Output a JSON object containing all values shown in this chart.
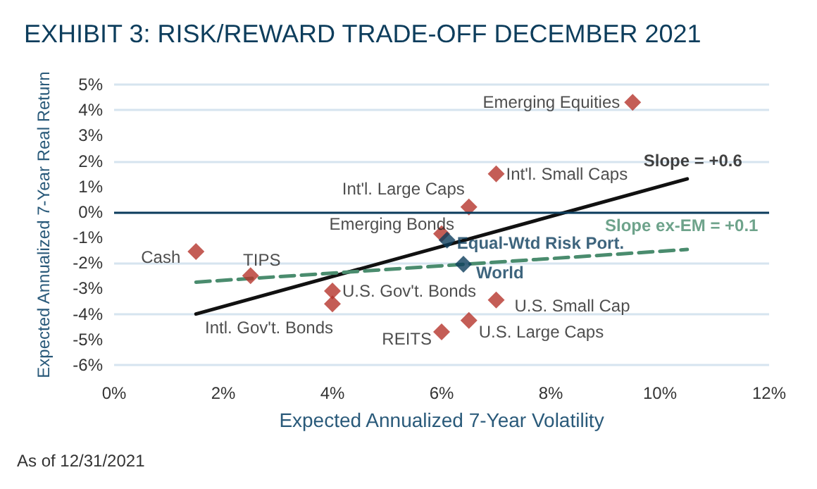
{
  "chart_data": {
    "type": "scatter",
    "title": "EXHIBIT 3: RISK/REWARD TRADE-OFF DECEMBER 2021",
    "xlabel": "Expected Annualized 7-Year Volatility",
    "ylabel": "Expected Annualized 7-Year Real Return",
    "xlim": [
      0,
      12
    ],
    "xticks": [
      {
        "value": 0,
        "label": "0%"
      },
      {
        "value": 2,
        "label": "2%"
      },
      {
        "value": 4,
        "label": "4%"
      },
      {
        "value": 6,
        "label": "6%"
      },
      {
        "value": 8,
        "label": "8%"
      },
      {
        "value": 10,
        "label": "10%"
      },
      {
        "value": 12,
        "label": "12%"
      }
    ],
    "ylim": [
      -6,
      5
    ],
    "yticks": [
      {
        "value": -6,
        "label": "-6%"
      },
      {
        "value": -5,
        "label": "-5%"
      },
      {
        "value": -4,
        "label": "-4%"
      },
      {
        "value": -3,
        "label": "-3%"
      },
      {
        "value": -2,
        "label": "-2%"
      },
      {
        "value": -1,
        "label": "-1%"
      },
      {
        "value": 0,
        "label": "0%"
      },
      {
        "value": 1,
        "label": "1%"
      },
      {
        "value": 2,
        "label": "2%"
      },
      {
        "value": 3,
        "label": "3%"
      },
      {
        "value": 4,
        "label": "4%"
      },
      {
        "value": 5,
        "label": "5%"
      }
    ],
    "grid": "y",
    "marker": "diamond",
    "series": [
      {
        "color": "#b5342c",
        "x": [
          9.5,
          7.0,
          6.5,
          6.0,
          7.0,
          6.5,
          6.0,
          1.5,
          2.5,
          4.0,
          4.0
        ],
        "values": [
          4.3,
          1.5,
          0.2,
          -0.85,
          -3.45,
          -4.25,
          -4.7,
          -1.55,
          -2.5,
          -3.1,
          -3.6
        ]
      },
      {
        "color": "#0d3d5c",
        "x": [
          6.1,
          6.4
        ],
        "values": [
          -1.1,
          -2.05
        ]
      },
      {
        "type": "line",
        "color": "#111111",
        "line_style": "solid",
        "marker": "none",
        "x": [
          1.5,
          10.5
        ],
        "values": [
          -4.0,
          1.3
        ]
      },
      {
        "type": "line",
        "color": "#4a8c6e",
        "line_style": "dashed",
        "marker": "none",
        "x": [
          1.5,
          10.5
        ],
        "values": [
          -2.75,
          -1.47
        ]
      }
    ],
    "ref_lines": [
      {
        "axis": "y",
        "value": 0,
        "color": "#0d3d5c"
      }
    ],
    "annotations": [
      {
        "text": "Emerging Equities",
        "x": 9.5,
        "y": 4.3
      },
      {
        "text": "Int'l. Small Caps",
        "x": 7.0,
        "y": 1.5
      },
      {
        "text": "Int'l. Large Caps",
        "x": 6.5,
        "y": 0.2
      },
      {
        "text": "Emerging Bonds",
        "x": 6.0,
        "y": -0.85
      },
      {
        "text": "U.S. Small Cap",
        "x": 7.0,
        "y": -3.45
      },
      {
        "text": "U.S. Large Caps",
        "x": 6.5,
        "y": -4.25
      },
      {
        "text": "REITS",
        "x": 6.0,
        "y": -4.7
      },
      {
        "text": "Cash",
        "x": 1.5,
        "y": -1.55
      },
      {
        "text": "TIPS",
        "x": 2.5,
        "y": -2.5
      },
      {
        "text": "U.S. Gov't. Bonds",
        "x": 4.0,
        "y": -3.1
      },
      {
        "text": "Intl. Gov't. Bonds",
        "x": 4.0,
        "y": -3.6
      },
      {
        "text": "Equal-Wtd Risk Port.",
        "x": 6.1,
        "y": -1.1
      },
      {
        "text": "World",
        "x": 6.4,
        "y": -2.05
      },
      {
        "text": "Slope = +0.6",
        "x": 10.5,
        "y": 1.3
      },
      {
        "text": "Slope ex-EM = +0.1",
        "x": 10.5,
        "y": -1.47
      },
      "As of 12/31/2021"
    ]
  }
}
